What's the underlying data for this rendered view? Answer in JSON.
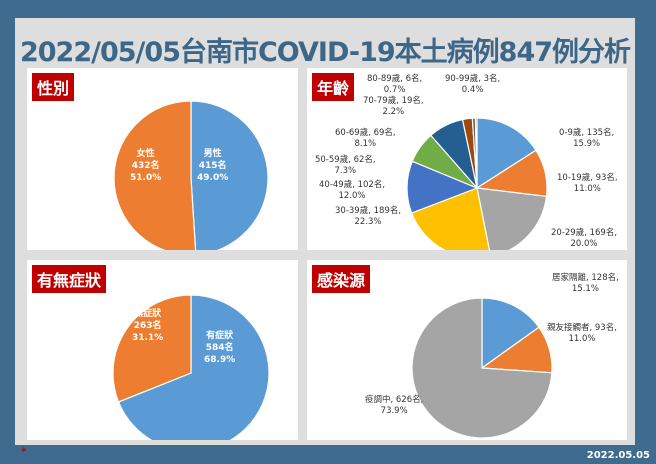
{
  "title": "2022/05/05台南市COVID-19本土病例847例分析",
  "date": "2022.05.05",
  "logo_text": "臺南",
  "chart_data": [
    {
      "type": "pie",
      "tag": "性別",
      "start": "12 o'clock clockwise",
      "slices": [
        {
          "label": "男性",
          "count": 415,
          "unit": "名",
          "pct": "49.0%",
          "color": "#5b9bd5"
        },
        {
          "label": "女性",
          "count": 432,
          "unit": "名",
          "pct": "51.0%",
          "color": "#ed7d31"
        }
      ]
    },
    {
      "type": "pie",
      "tag": "年齡",
      "start": "12 o'clock clockwise",
      "slices": [
        {
          "label": "0-9歲",
          "count": 135,
          "pct": "15.9%",
          "color": "#5b9bd5"
        },
        {
          "label": "10-19歲",
          "count": 93,
          "pct": "11.0%",
          "color": "#ed7d31"
        },
        {
          "label": "20-29歲",
          "count": 169,
          "pct": "20.0%",
          "color": "#a5a5a5"
        },
        {
          "label": "30-39歲",
          "count": 189,
          "pct": "22.3%",
          "color": "#ffc000"
        },
        {
          "label": "40-49歲",
          "count": 102,
          "pct": "12.0%",
          "color": "#4472c4"
        },
        {
          "label": "50-59歲",
          "count": 62,
          "pct": "7.3%",
          "color": "#70ad47"
        },
        {
          "label": "60-69歲",
          "count": 69,
          "pct": "8.1%",
          "color": "#255e91"
        },
        {
          "label": "70-79歲",
          "count": 19,
          "pct": "2.2%",
          "color": "#9e480e"
        },
        {
          "label": "80-89歲",
          "count": 6,
          "pct": "0.7%",
          "color": "#636363"
        },
        {
          "label": "90-99歲",
          "count": 3,
          "pct": "0.4%",
          "color": "#997300"
        }
      ]
    },
    {
      "type": "pie",
      "tag": "有無症狀",
      "start": "12 o'clock clockwise",
      "slices": [
        {
          "label": "有症狀",
          "count": 584,
          "pct": "68.9%",
          "color": "#5b9bd5"
        },
        {
          "label": "無症狀",
          "count": 263,
          "pct": "31.1%",
          "color": "#ed7d31"
        }
      ]
    },
    {
      "type": "pie",
      "tag": "感染源",
      "start": "12 o'clock clockwise",
      "slices": [
        {
          "label": "居家隔離",
          "count": 128,
          "pct": "15.1%",
          "color": "#5b9bd5"
        },
        {
          "label": "親友接觸者",
          "count": 93,
          "pct": "11.0%",
          "color": "#ed7d31"
        },
        {
          "label": "疫調中",
          "count": 626,
          "pct": "73.9%",
          "color": "#a5a5a5"
        }
      ]
    }
  ]
}
